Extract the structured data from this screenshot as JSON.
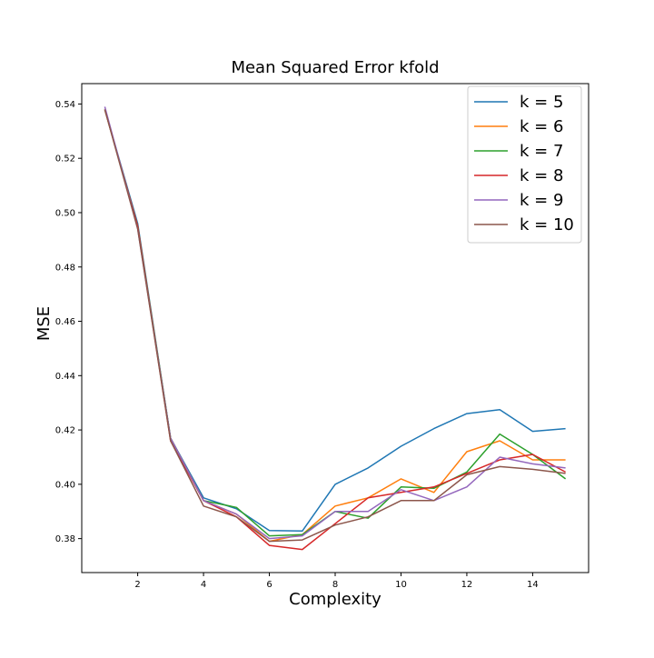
{
  "chart_data": {
    "type": "line",
    "title": "Mean Squared Error kfold",
    "xlabel": "Complexity",
    "ylabel": "MSE",
    "xlim": [
      0.3,
      15.7
    ],
    "ylim": [
      0.3675,
      0.5475
    ],
    "xticks": [
      2,
      4,
      6,
      8,
      10,
      12,
      14
    ],
    "yticks": [
      0.38,
      0.4,
      0.42,
      0.44,
      0.46,
      0.48,
      0.5,
      0.52,
      0.54
    ],
    "xtick_labels": [
      "2",
      "4",
      "6",
      "8",
      "10",
      "12",
      "14"
    ],
    "ytick_labels": [
      "0.38",
      "0.40",
      "0.42",
      "0.44",
      "0.46",
      "0.48",
      "0.50",
      "0.52",
      "0.54"
    ],
    "grid": false,
    "legend_position": "top-right",
    "x": [
      1,
      2,
      3,
      4,
      5,
      6,
      7,
      8,
      9,
      10,
      11,
      12,
      13,
      14,
      15
    ],
    "series": [
      {
        "name": "k = 5",
        "color": "#1f77b4",
        "values": [
          0.538,
          0.496,
          0.417,
          0.395,
          0.391,
          0.383,
          0.3828,
          0.4,
          0.406,
          0.414,
          0.4205,
          0.426,
          0.4275,
          0.4195,
          0.4205
        ]
      },
      {
        "name": "k = 6",
        "color": "#ff7f0e",
        "values": [
          0.538,
          0.495,
          0.417,
          0.394,
          0.389,
          0.379,
          0.3815,
          0.392,
          0.395,
          0.402,
          0.397,
          0.412,
          0.416,
          0.409,
          0.409
        ]
      },
      {
        "name": "k = 7",
        "color": "#2ca02c",
        "values": [
          0.538,
          0.495,
          0.417,
          0.394,
          0.3915,
          0.381,
          0.3815,
          0.39,
          0.3875,
          0.399,
          0.3985,
          0.4045,
          0.4185,
          0.411,
          0.402
        ]
      },
      {
        "name": "k = 8",
        "color": "#d62728",
        "values": [
          0.538,
          0.495,
          0.416,
          0.394,
          0.388,
          0.3775,
          0.376,
          0.3855,
          0.395,
          0.397,
          0.399,
          0.404,
          0.409,
          0.411,
          0.4045
        ]
      },
      {
        "name": "k = 9",
        "color": "#9467bd",
        "values": [
          0.539,
          0.494,
          0.417,
          0.394,
          0.389,
          0.38,
          0.381,
          0.39,
          0.39,
          0.398,
          0.394,
          0.399,
          0.41,
          0.4075,
          0.406
        ]
      },
      {
        "name": "k = 10",
        "color": "#8c564b",
        "values": [
          0.538,
          0.494,
          0.416,
          0.392,
          0.388,
          0.379,
          0.3795,
          0.385,
          0.388,
          0.394,
          0.394,
          0.4035,
          0.4065,
          0.4055,
          0.404
        ]
      }
    ]
  }
}
